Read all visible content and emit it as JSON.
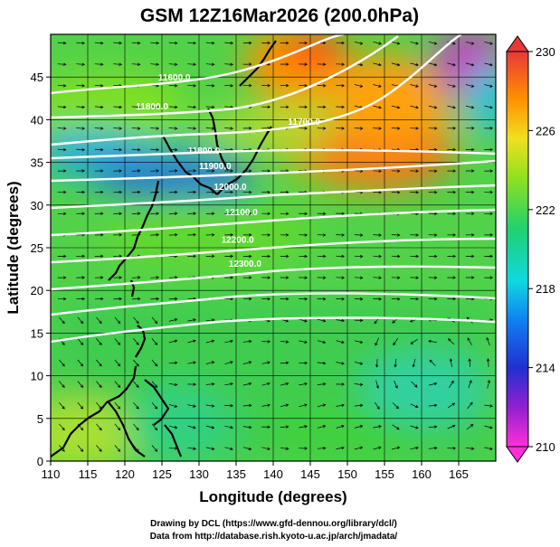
{
  "title": "GSM 12Z16Mar2026 (200.0hPa)",
  "map": {
    "xlabel": "Longitude (degrees)",
    "ylabel": "Latitude  (degrees)",
    "lon_range": [
      110,
      170
    ],
    "lat_range": [
      0,
      50
    ],
    "lon_ticks": [
      "110",
      "115",
      "120",
      "125",
      "130",
      "135",
      "140",
      "145",
      "150",
      "155",
      "160",
      "165"
    ],
    "lat_ticks": [
      "0",
      "5",
      "10",
      "15",
      "20",
      "25",
      "30",
      "35",
      "40",
      "45"
    ],
    "colorbar": {
      "min": 210,
      "max": 230,
      "labels": [
        "230",
        "226",
        "222",
        "218",
        "214",
        "210"
      ],
      "colors": [
        "#e040c0",
        "#4030c8",
        "#10c8d8",
        "#30d060",
        "#a8e020",
        "#ffd800",
        "#ff8000",
        "#e83030"
      ]
    },
    "contour_labels": [
      {
        "text": "11600.0",
        "lon": 124.5,
        "lat": 44.6
      },
      {
        "text": "11800.0",
        "lon": 121.5,
        "lat": 41.2
      },
      {
        "text": "11700.0",
        "lon": 142.0,
        "lat": 39.4
      },
      {
        "text": "11800.0",
        "lon": 128.5,
        "lat": 36.0
      },
      {
        "text": "11900.0",
        "lon": 130.0,
        "lat": 34.2
      },
      {
        "text": "12000.0",
        "lon": 132.0,
        "lat": 31.8
      },
      {
        "text": "12100.0",
        "lon": 133.5,
        "lat": 28.8
      },
      {
        "text": "12200.0",
        "lon": 133.0,
        "lat": 25.6
      },
      {
        "text": "12300.0",
        "lon": 134.0,
        "lat": 22.8
      }
    ]
  },
  "credits": [
    "Drawing by DCL (https://www.gfd-dennou.org/library/dcl/)",
    "Data from http://database.rish.kyoto-u.ac.jp/arch/jmadata/"
  ]
}
